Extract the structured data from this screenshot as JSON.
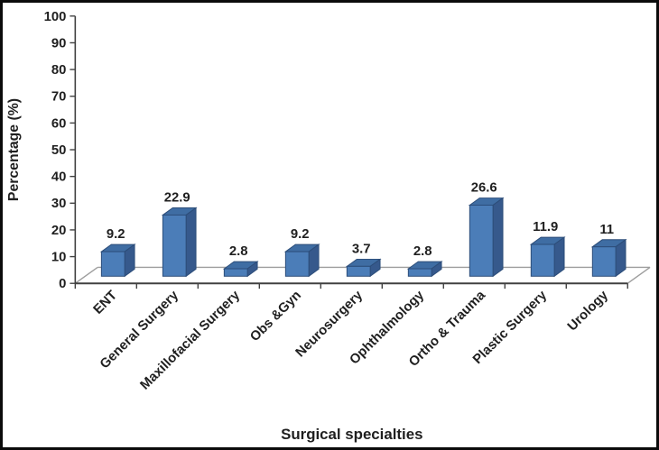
{
  "chart_data": {
    "type": "bar",
    "style": "3d-column",
    "title": "",
    "xlabel": "Surgical specialties",
    "ylabel": "Percentage (%)",
    "categories": [
      "ENT",
      "General Surgery",
      "Maxillofacial Surgery",
      "Obs &Gyn",
      "Neurosurgery",
      "Ophthalmology",
      "Ortho & Trauma",
      "Plastic Surgery",
      "Urology"
    ],
    "values": [
      9.2,
      22.9,
      2.8,
      9.2,
      3.7,
      2.8,
      26.6,
      11.9,
      11
    ],
    "value_labels": [
      "9.2",
      "22.9",
      "2.8",
      "9.2",
      "3.7",
      "2.8",
      "26.6",
      "11.9",
      "11"
    ],
    "ylim": [
      0,
      100
    ],
    "yticks": [
      0,
      10,
      20,
      30,
      40,
      50,
      60,
      70,
      80,
      90,
      100
    ],
    "grid": false,
    "legend": false,
    "colors": {
      "bar_front": "#4b7db8",
      "bar_top": "#3f6da3",
      "bar_side": "#36598c",
      "bar_stroke": "#2c4d79",
      "axis_line": "#404040",
      "floor_line": "#9d9d9d",
      "text": "#1f1f1f",
      "background": "#ffffff",
      "border": "#0b0b0b"
    }
  }
}
